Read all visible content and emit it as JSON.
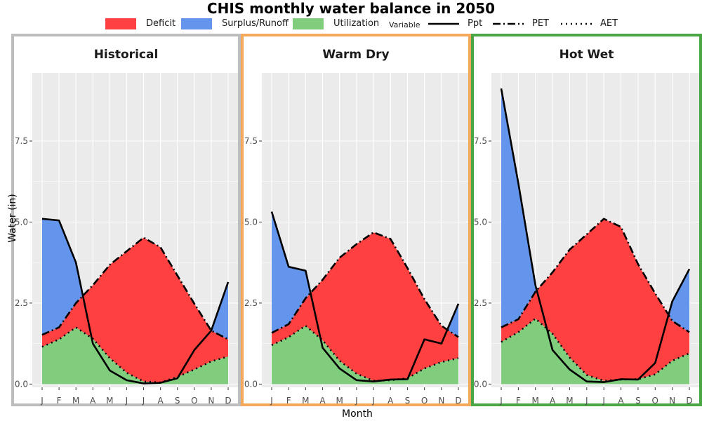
{
  "title": "CHIS monthly water balance in 2050",
  "legend": {
    "fill_items": [
      {
        "label": "Deficit",
        "color": "#ff4040"
      },
      {
        "label": "Surplus/Runoff",
        "color": "#6495ed"
      },
      {
        "label": "Utilization",
        "color": "#7fcd7d"
      }
    ],
    "line_title": "Variable",
    "line_items": [
      {
        "label": "Ppt",
        "dash": "solid"
      },
      {
        "label": "PET",
        "dash": "dashdot"
      },
      {
        "label": "AET",
        "dash": "dotted"
      }
    ]
  },
  "axes": {
    "xlabel": "Month",
    "ylabel": "Water (in)",
    "x_ticks": [
      "J",
      "F",
      "M",
      "A",
      "M",
      "J",
      "J",
      "A",
      "S",
      "O",
      "N",
      "D"
    ],
    "y_ticks": [
      0.0,
      2.5,
      5.0,
      7.5
    ],
    "y_tick_labels": [
      "0.0",
      "2.5",
      "5.0",
      "7.5"
    ],
    "ylim": [
      -0.1,
      9.6
    ]
  },
  "colors": {
    "deficit": "#ff4040",
    "surplus": "#6495ed",
    "utilization": "#7fcd7d",
    "panel_bg": "#ebebeb",
    "grid": "#ffffff"
  },
  "chart_data": [
    {
      "type": "area",
      "panel": "Historical",
      "frame_color": "#bdbdbd",
      "months": [
        "J",
        "F",
        "M",
        "A",
        "M",
        "J",
        "J",
        "A",
        "S",
        "O",
        "N",
        "D"
      ],
      "series": [
        {
          "name": "Ppt",
          "values": [
            5.1,
            5.05,
            3.75,
            1.25,
            0.42,
            0.12,
            0.02,
            0.04,
            0.18,
            1.05,
            1.65,
            3.15
          ]
        },
        {
          "name": "PET",
          "values": [
            1.52,
            1.75,
            2.5,
            3.05,
            3.68,
            4.1,
            4.52,
            4.22,
            3.35,
            2.48,
            1.65,
            1.38
          ]
        },
        {
          "name": "AET",
          "values": [
            1.15,
            1.38,
            1.75,
            1.4,
            0.8,
            0.35,
            0.08,
            0.05,
            0.22,
            0.45,
            0.7,
            0.85
          ]
        }
      ]
    },
    {
      "type": "area",
      "panel": "Warm Dry",
      "frame_color": "#f4a85c",
      "months": [
        "J",
        "F",
        "M",
        "A",
        "M",
        "J",
        "J",
        "A",
        "S",
        "O",
        "N",
        "D"
      ],
      "series": [
        {
          "name": "Ppt",
          "values": [
            5.32,
            3.62,
            3.5,
            1.12,
            0.48,
            0.12,
            0.08,
            0.14,
            0.15,
            1.38,
            1.25,
            2.48
          ]
        },
        {
          "name": "PET",
          "values": [
            1.58,
            1.85,
            2.65,
            3.22,
            3.9,
            4.32,
            4.68,
            4.48,
            3.58,
            2.62,
            1.8,
            1.45
          ]
        },
        {
          "name": "AET",
          "values": [
            1.2,
            1.45,
            1.8,
            1.35,
            0.72,
            0.32,
            0.1,
            0.12,
            0.18,
            0.48,
            0.68,
            0.8
          ]
        }
      ]
    },
    {
      "type": "area",
      "panel": "Hot Wet",
      "frame_color": "#4aa544",
      "months": [
        "J",
        "F",
        "M",
        "A",
        "M",
        "J",
        "J",
        "A",
        "S",
        "O",
        "N",
        "D"
      ],
      "series": [
        {
          "name": "Ppt",
          "values": [
            9.12,
            6.2,
            3.05,
            1.05,
            0.45,
            0.08,
            0.06,
            0.15,
            0.14,
            0.65,
            2.55,
            3.55
          ]
        },
        {
          "name": "PET",
          "values": [
            1.75,
            2.0,
            2.85,
            3.45,
            4.15,
            4.62,
            5.1,
            4.85,
            3.7,
            2.8,
            1.95,
            1.6
          ]
        },
        {
          "name": "AET",
          "values": [
            1.3,
            1.6,
            2.02,
            1.55,
            0.82,
            0.28,
            0.1,
            0.14,
            0.15,
            0.3,
            0.72,
            0.95
          ]
        }
      ]
    }
  ]
}
